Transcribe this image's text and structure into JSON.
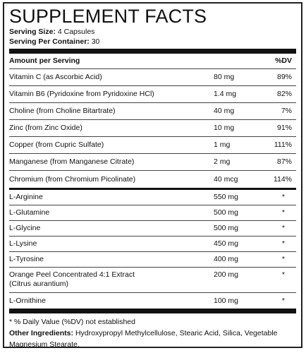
{
  "title": "SUPPLEMENT FACTS",
  "serving_size": {
    "label": "Serving Size:",
    "value": "4 Capsules"
  },
  "servings_per_container": {
    "label": "Serving Per Container:",
    "value": "30"
  },
  "header": {
    "amount": "Amount per Serving",
    "dv": "%DV"
  },
  "vitamins": [
    {
      "name": "Vitamin C (as Ascorbic Acid)",
      "amount": "80 mg",
      "dv": "89%"
    },
    {
      "name": "Vitamin B6 (Pyridoxine from Pyridoxine HCl)",
      "amount": "1.4 mg",
      "dv": "82%"
    },
    {
      "name": "Choline (from Choline Bitartrate)",
      "amount": "40 mg",
      "dv": "7%"
    },
    {
      "name": "Zinc (from Zinc Oxide)",
      "amount": "10 mg",
      "dv": "91%"
    },
    {
      "name": "Copper (from Cupric Sulfate)",
      "amount": "1 mg",
      "dv": "111%"
    },
    {
      "name": "Manganese (from Manganese Citrate)",
      "amount": "2 mg",
      "dv": "87%"
    },
    {
      "name": "Chromium (from Chromium Picolinate)",
      "amount": "40 mcg",
      "dv": "114%"
    }
  ],
  "aminos": [
    {
      "name": "L-Arginine",
      "amount": "550 mg",
      "dv": "*"
    },
    {
      "name": "L-Glutamine",
      "amount": "500 mg",
      "dv": "*"
    },
    {
      "name": "L-Glycine",
      "amount": "500 mg",
      "dv": "*"
    },
    {
      "name": "L-Lysine",
      "amount": "450 mg",
      "dv": "*"
    },
    {
      "name": "L-Tyrosine",
      "amount": "400 mg",
      "dv": "*"
    },
    {
      "name": "Orange Peel Concentrated 4:1 Extract",
      "name2": "(Citrus aurantium)",
      "amount": "200 mg",
      "dv": "*"
    },
    {
      "name": "L-Ornithine",
      "amount": "100 mg",
      "dv": "*"
    }
  ],
  "footnote": "* % Daily Value (%DV) not established",
  "other_ingredients": {
    "label": "Other Ingredients:",
    "text": "Hydroxypropyl Methylcellulose, Stearic Acid, Silica, Vegetable Magnesium Stearate."
  }
}
